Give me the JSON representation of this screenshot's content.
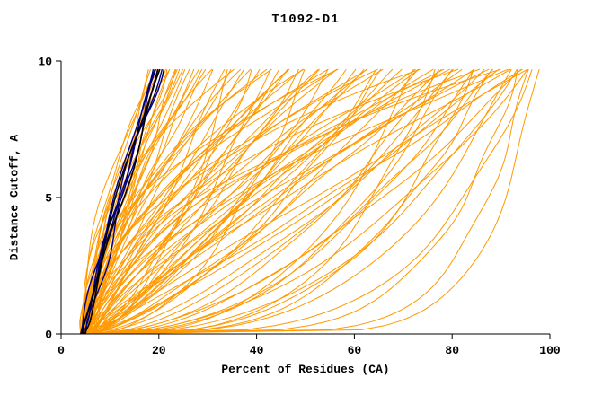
{
  "chart_data": {
    "type": "line",
    "title": "T1092-D1",
    "xlabel": "Percent of Residues (CA)",
    "ylabel": "Distance Cutoff, A",
    "xlim": [
      0,
      100
    ],
    "ylim": [
      0,
      10
    ],
    "xticks": [
      0,
      20,
      40,
      60,
      80,
      100
    ],
    "yticks": [
      0,
      5,
      10
    ],
    "y_curve_top": 9.7,
    "grid": false,
    "legend": "none",
    "colors": {
      "model": "#ff9900",
      "reference": "#000080",
      "best": "#000000",
      "axis": "#000000",
      "background": "#ffffff"
    },
    "curve_model": "x(y) = x0 + (xtop - x0) * (y / ymax)^p ; each curve encoded as [x0, xtop, p] (percent at cutoff 0, percent at top cutoff, bend exponent)",
    "series": [
      {
        "name": "model-curves-orange",
        "color_key": "model",
        "stroke_width": 1,
        "curves": [
          [
            4,
            18,
            1.1
          ],
          [
            4.5,
            19,
            1.0
          ],
          [
            5,
            20,
            1.2
          ],
          [
            4,
            21,
            1.3
          ],
          [
            5.5,
            22,
            1.0
          ],
          [
            4,
            22,
            1.5
          ],
          [
            5,
            23,
            1.1
          ],
          [
            6,
            24,
            1.2
          ],
          [
            4.5,
            24,
            0.9
          ],
          [
            5,
            25,
            1.4
          ],
          [
            4,
            26,
            1.2
          ],
          [
            5.5,
            27,
            1.0
          ],
          [
            6,
            28,
            1.3
          ],
          [
            4.5,
            29,
            1.1
          ],
          [
            5,
            30,
            1.5
          ],
          [
            4,
            20,
            1.8
          ],
          [
            5,
            21,
            2.0
          ],
          [
            6,
            26,
            1.7
          ],
          [
            4.5,
            23,
            1.6
          ],
          [
            5.5,
            25,
            1.8
          ],
          [
            4,
            32,
            1.0
          ],
          [
            5,
            34,
            0.8
          ],
          [
            6,
            36,
            1.2
          ],
          [
            4.5,
            38,
            1.5
          ],
          [
            5.5,
            40,
            0.7
          ],
          [
            6.5,
            42,
            1.1
          ],
          [
            4,
            44,
            1.8
          ],
          [
            5,
            46,
            0.9
          ],
          [
            6,
            48,
            1.3
          ],
          [
            7,
            50,
            0.8
          ],
          [
            4.5,
            52,
            1.6
          ],
          [
            5.5,
            54,
            1.0
          ],
          [
            6.5,
            56,
            0.7
          ],
          [
            4,
            58,
            1.2
          ],
          [
            5,
            60,
            1.9
          ],
          [
            6,
            62,
            0.8
          ],
          [
            7,
            64,
            1.1
          ],
          [
            4.5,
            66,
            0.6
          ],
          [
            5.5,
            68,
            1.4
          ],
          [
            6.5,
            70,
            0.9
          ],
          [
            4,
            33,
            2.0
          ],
          [
            5,
            37,
            2.2
          ],
          [
            6,
            41,
            1.7
          ],
          [
            4.5,
            45,
            2.0
          ],
          [
            5.5,
            49,
            1.5
          ],
          [
            6.5,
            53,
            2.1
          ],
          [
            4,
            57,
            1.8
          ],
          [
            5,
            61,
            2.3
          ],
          [
            6,
            65,
            1.6
          ],
          [
            7,
            69,
            2.0
          ],
          [
            4.5,
            35,
            0.5
          ],
          [
            5.5,
            43,
            0.6
          ],
          [
            6.5,
            51,
            0.5
          ],
          [
            4,
            59,
            0.7
          ],
          [
            5,
            67,
            0.6
          ],
          [
            5,
            39,
            1.05
          ],
          [
            6,
            47,
            0.95
          ],
          [
            4.5,
            55,
            1.25
          ],
          [
            5.5,
            63,
            0.85
          ],
          [
            6.5,
            31,
            1.35
          ],
          [
            5,
            72,
            0.9
          ],
          [
            6,
            74,
            0.7
          ],
          [
            7,
            76,
            1.1
          ],
          [
            5.5,
            78,
            0.5
          ],
          [
            6.5,
            80,
            0.8
          ],
          [
            7.5,
            82,
            0.6
          ],
          [
            5,
            84,
            1.0
          ],
          [
            6,
            86,
            0.45
          ],
          [
            7,
            88,
            0.7
          ],
          [
            8,
            90,
            0.55
          ],
          [
            5.5,
            92,
            0.8
          ],
          [
            6.5,
            94,
            0.4
          ],
          [
            7.5,
            96,
            0.6
          ],
          [
            5,
            75,
            1.3
          ],
          [
            6,
            79,
            1.2
          ],
          [
            7,
            83,
            1.4
          ],
          [
            5.5,
            87,
            1.1
          ],
          [
            6.5,
            91,
            1.3
          ],
          [
            7.5,
            95,
            1.2
          ],
          [
            5,
            97,
            0.9
          ],
          [
            6,
            73,
            0.35
          ],
          [
            7,
            77,
            0.3
          ],
          [
            5.5,
            81,
            0.4
          ],
          [
            6.5,
            85,
            0.3
          ],
          [
            7.5,
            89,
            0.35
          ],
          [
            5,
            93,
            0.3
          ],
          [
            6,
            97,
            0.25
          ],
          [
            8,
            96,
            0.15
          ],
          [
            7,
            94,
            0.2
          ],
          [
            6,
            90,
            1.8
          ],
          [
            5,
            86,
            2.0
          ],
          [
            7,
            82,
            1.6
          ],
          [
            6,
            78,
            2.2
          ],
          [
            5,
            96,
            1.6
          ],
          [
            6,
            95,
            2.0
          ],
          [
            6,
            98,
            0.12
          ],
          [
            7,
            97,
            0.5
          ],
          [
            5,
            98,
            1.0
          ]
        ]
      },
      {
        "name": "reference-curves-navy",
        "color_key": "reference",
        "stroke_width": 1.4,
        "curves": [
          [
            4,
            19,
            1.05
          ],
          [
            4.5,
            20,
            1.1
          ],
          [
            4,
            21,
            1.15
          ],
          [
            5,
            20,
            0.95
          ],
          [
            4.5,
            21.5,
            1.2
          ]
        ]
      },
      {
        "name": "best-curves-black",
        "color_key": "best",
        "stroke_width": 1.6,
        "curves": [
          [
            4.2,
            20,
            1.1
          ],
          [
            4.8,
            21,
            1.05
          ]
        ]
      }
    ]
  }
}
